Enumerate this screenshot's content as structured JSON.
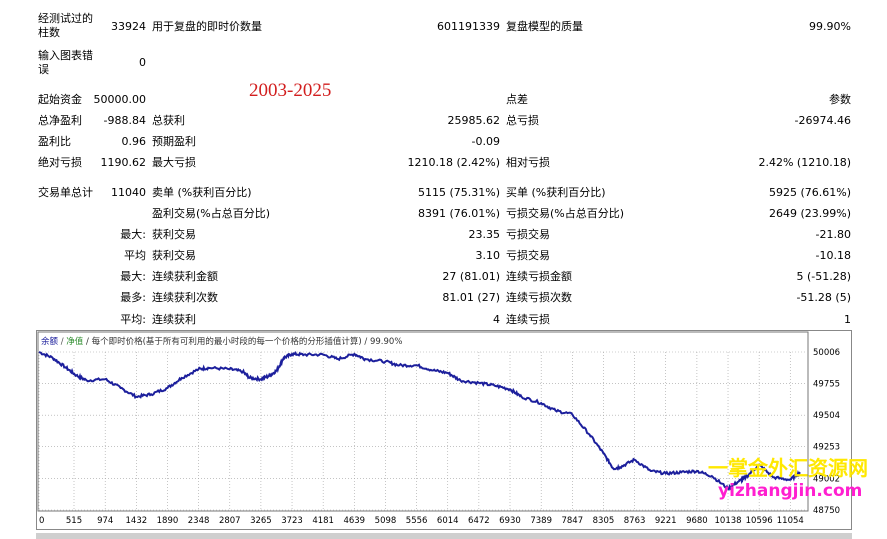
{
  "report": {
    "bars_tested_label": "经测试过的",
    "bars_tested_label2": "柱数",
    "bars_tested_value": "33924",
    "ticks_label": "用于复盘的即时价数量",
    "ticks_value": "601191339",
    "quality_label": "复盘模型的质量",
    "quality_value": "99.90%",
    "mismatch_label": "输入图表错",
    "mismatch_label2": "误",
    "mismatch_value": "0",
    "initial_deposit_label": "起始资金",
    "initial_deposit_value": "50000.00",
    "spread_label": "点差",
    "spread_value": "参数",
    "net_profit_label": "总净盈利",
    "net_profit_value": "-988.84",
    "gross_profit_label": "总获利",
    "gross_profit_value": "25985.62",
    "gross_loss_label": "总亏损",
    "gross_loss_value": "-26974.46",
    "profit_factor_label": "盈利比",
    "profit_factor_value": "0.96",
    "expected_payoff_label": "预期盈利",
    "expected_payoff_value": "-0.09",
    "abs_drawdown_label": "绝对亏损",
    "abs_drawdown_value": "1190.62",
    "max_drawdown_label": "最大亏损",
    "max_drawdown_value": "1210.18 (2.42%)",
    "rel_drawdown_label": "相对亏损",
    "rel_drawdown_value": "2.42% (1210.18)",
    "total_trades_label": "交易单总计",
    "total_trades_value": "11040",
    "short_label": "卖单 (%获利百分比)",
    "short_value": "5115 (75.31%)",
    "long_label": "买单 (%获利百分比)",
    "long_value": "5925 (76.61%)",
    "profit_trades_label": "盈利交易(%占总百分比)",
    "profit_trades_value": "8391 (76.01%)",
    "loss_trades_label": "亏损交易(%占总百分比)",
    "loss_trades_value": "2649 (23.99%)",
    "largest_prefix": "最大:",
    "largest_profit_label": "获利交易",
    "largest_profit_value": "23.35",
    "largest_loss_label": "亏损交易",
    "largest_loss_value": "-21.80",
    "average_prefix": "平均",
    "average_profit_label": "获利交易",
    "average_profit_value": "3.10",
    "average_loss_label": "亏损交易",
    "average_loss_value": "-10.18",
    "max_consec_prefix": "最大:",
    "max_consec_wins_label": "连续获利金额",
    "max_consec_wins_value": "27 (81.01)",
    "max_consec_losses_label": "连续亏损金额",
    "max_consec_losses_value": "5 (-51.28)",
    "maximal_prefix": "最多:",
    "maximal_wins_label": "连续获利次数",
    "maximal_wins_value": "81.01 (27)",
    "maximal_losses_label": "连续亏损次数",
    "maximal_losses_value": "-51.28 (5)",
    "avg_consec_prefix": "平均:",
    "avg_consec_wins_label": "连续获利",
    "avg_consec_wins_value": "4",
    "avg_consec_losses_label": "连续亏损",
    "avg_consec_losses_value": "1"
  },
  "overlay": {
    "year_range": "2003-2025",
    "watermark_cn": "一掌金外汇资源网",
    "watermark_url": "yizhangjin.com"
  },
  "chart_header": {
    "balance": "余额",
    "sep1": " / ",
    "equity": "净值",
    "rest": " / 每个即时价格(基于所有可利用的最小时段的每一个价格的分形插值计算) / 99.90%"
  },
  "colors": {
    "line": "#1c1f9c",
    "balance_text": "#1c1f9c",
    "equity_text": "#2c8c2c",
    "grid": "#a0a0a0",
    "year_text": "#d21e1e"
  },
  "chart_data": {
    "type": "line",
    "title": "",
    "xlabel": "",
    "ylabel": "",
    "x_ticks": [
      "0",
      "515",
      "974",
      "1432",
      "1890",
      "2348",
      "2807",
      "3265",
      "3723",
      "4181",
      "4639",
      "5098",
      "5556",
      "6014",
      "6472",
      "6930",
      "7389",
      "7847",
      "8305",
      "8763",
      "9221",
      "9680",
      "10138",
      "10596",
      "11054"
    ],
    "y_ticks": [
      "50006",
      "49755",
      "49504",
      "49253",
      "49002",
      "48750"
    ],
    "xlim": [
      0,
      11300
    ],
    "ylim": [
      48750,
      50006
    ],
    "grid": true,
    "series": [
      {
        "x": [
          0,
          200,
          400,
          550,
          700,
          974,
          1200,
          1432,
          1650,
          1890,
          2100,
          2348,
          2500,
          2807,
          3000,
          3100,
          3265,
          3400,
          3500,
          3600,
          3723,
          3900,
          4181,
          4400,
          4639,
          4800,
          5098,
          5300,
          5556,
          5800,
          6014,
          6200,
          6472,
          6700,
          6930,
          7100,
          7389,
          7600,
          7847,
          8100,
          8305,
          8450,
          8550,
          8763,
          9000,
          9221,
          9450,
          9680,
          9900,
          10138,
          10300,
          10400,
          10596,
          10800,
          11054,
          11200
        ],
        "values": [
          50006,
          49960,
          49880,
          49820,
          49780,
          49790,
          49720,
          49650,
          49670,
          49720,
          49800,
          49870,
          49880,
          49870,
          49850,
          49800,
          49790,
          49820,
          49860,
          49960,
          49990,
          49985,
          49985,
          49950,
          49990,
          49950,
          49930,
          49900,
          49900,
          49860,
          49840,
          49780,
          49760,
          49740,
          49710,
          49650,
          49600,
          49540,
          49510,
          49350,
          49200,
          49080,
          49090,
          49150,
          49060,
          49040,
          49050,
          49060,
          49020,
          48920,
          48980,
          49010,
          49110,
          49010,
          48990,
          49050
        ]
      }
    ]
  }
}
